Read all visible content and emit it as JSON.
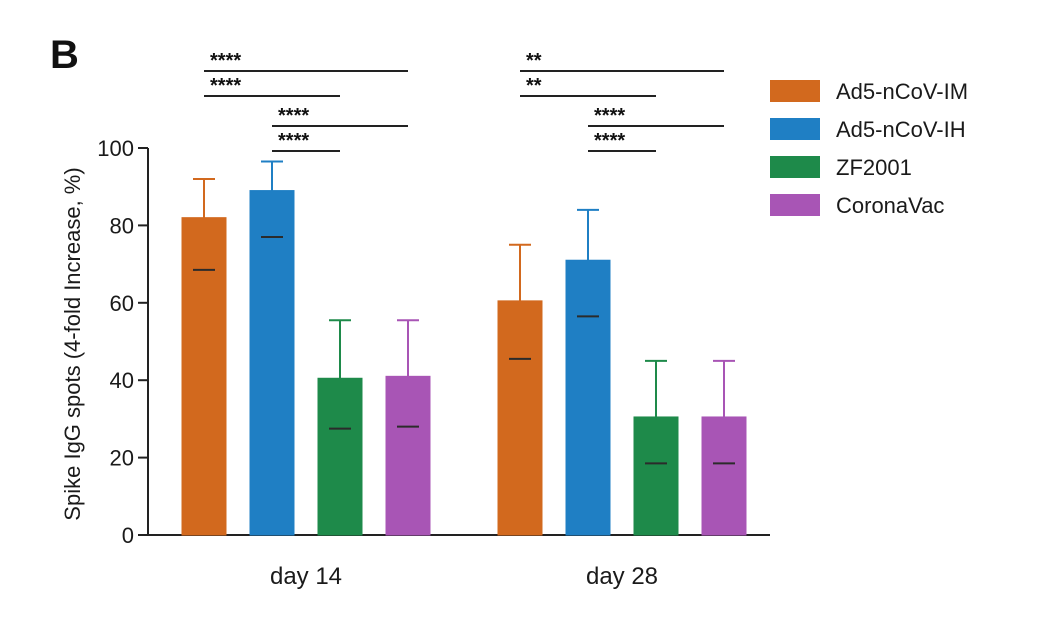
{
  "panel_label": "B",
  "chart_data": {
    "type": "bar",
    "categories": [
      "day 14",
      "day 28"
    ],
    "ylabel": "Spike IgG spots (4-fold Increase, %)",
    "xlabel": "",
    "ylim": [
      0,
      100
    ],
    "yticks": [
      0,
      20,
      40,
      60,
      80,
      100
    ],
    "legend_position": "top-right",
    "grid": false,
    "series": [
      {
        "name": "Ad5-nCoV-IM",
        "color": "#d2691e",
        "values": [
          82,
          60.5
        ],
        "err_low": [
          68.5,
          45.5
        ],
        "err_high": [
          92,
          75
        ]
      },
      {
        "name": "Ad5-nCoV-IH",
        "color": "#1f7fc4",
        "values": [
          89,
          71
        ],
        "err_low": [
          77,
          56.5
        ],
        "err_high": [
          96.5,
          84
        ]
      },
      {
        "name": "ZF2001",
        "color": "#1e8a4a",
        "values": [
          40.5,
          30.5
        ],
        "err_low": [
          27.5,
          18.5
        ],
        "err_high": [
          55.5,
          45
        ]
      },
      {
        "name": "CoronaVac",
        "color": "#a855b5",
        "values": [
          41,
          30.5
        ],
        "err_low": [
          28,
          18.5
        ],
        "err_high": [
          55.5,
          45
        ]
      }
    ],
    "significance": [
      {
        "category": 0,
        "from": 0,
        "to": 3,
        "label": "****"
      },
      {
        "category": 0,
        "from": 0,
        "to": 2,
        "label": "****"
      },
      {
        "category": 0,
        "from": 1,
        "to": 3,
        "label": "****"
      },
      {
        "category": 0,
        "from": 1,
        "to": 2,
        "label": "****"
      },
      {
        "category": 1,
        "from": 0,
        "to": 3,
        "label": "**"
      },
      {
        "category": 1,
        "from": 0,
        "to": 2,
        "label": "**"
      },
      {
        "category": 1,
        "from": 1,
        "to": 3,
        "label": "****"
      },
      {
        "category": 1,
        "from": 1,
        "to": 2,
        "label": "****"
      }
    ]
  }
}
